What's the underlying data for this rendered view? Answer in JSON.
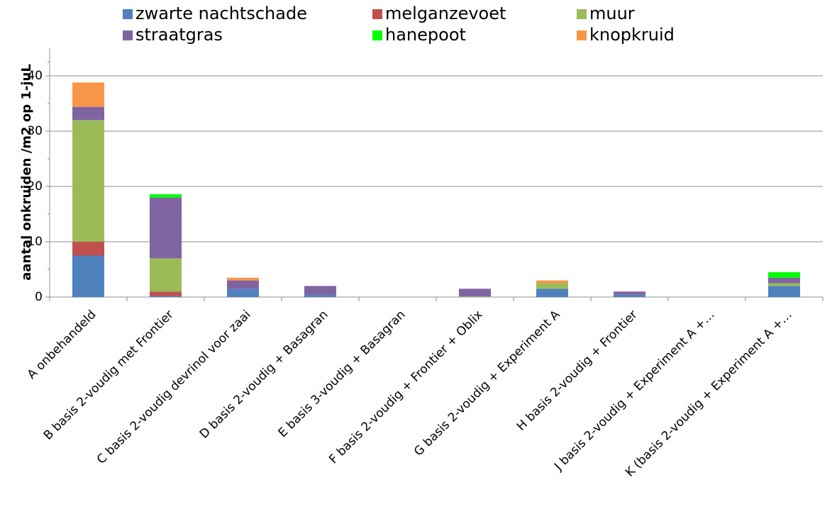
{
  "chart_data": {
    "type": "stacked_bar",
    "y_label": "aantal onkruiden /m2 op 1-juL",
    "categories": [
      "A onbehandeld",
      "B basis 2-voudig met Frontier",
      "C basis 2-voudig devrinol voor zaai",
      "D basis 2-voudig + Basagran",
      "E basis 3-voudig + Basagran",
      "F basis 2-voudig + Frontier + Oblix",
      "G basis 2-voudig + Experiment A",
      "H basis 2-voudig + Frontier",
      "J basis 2-voudig + Experiment A +…",
      "K (basis 2-voudig + Experiment A +…"
    ],
    "series": [
      {
        "name": "zwarte nachtschade",
        "color": "#4f81bd",
        "values": [
          7.5,
          0.2,
          1.5,
          0.4,
          0,
          0,
          1.5,
          0.4,
          0,
          2
        ]
      },
      {
        "name": "melganzevoet",
        "color": "#c0504d",
        "values": [
          2.5,
          0.8,
          0,
          0,
          0,
          0,
          0,
          0,
          0,
          0
        ]
      },
      {
        "name": "muur",
        "color": "#9bbb59",
        "values": [
          22,
          6,
          0,
          0,
          0,
          0.1,
          1,
          0,
          0,
          0.5
        ]
      },
      {
        "name": "straatgras",
        "color": "#8064a2",
        "values": [
          2.4,
          11,
          1.5,
          1.6,
          0,
          1.4,
          0,
          0.6,
          0,
          1
        ]
      },
      {
        "name": "hanepoot",
        "color": "#00ff00",
        "values": [
          0,
          0.6,
          0,
          0,
          0,
          0,
          0,
          0,
          0,
          1
        ]
      },
      {
        "name": "knopkruid",
        "color": "#f79646",
        "values": [
          4.4,
          0,
          0.5,
          0,
          0,
          0,
          0.5,
          0,
          0,
          0
        ]
      }
    ],
    "ylim": [
      0,
      45
    ],
    "yticks": [
      0,
      10,
      20,
      30,
      40
    ],
    "grid": true,
    "legend": "top"
  }
}
